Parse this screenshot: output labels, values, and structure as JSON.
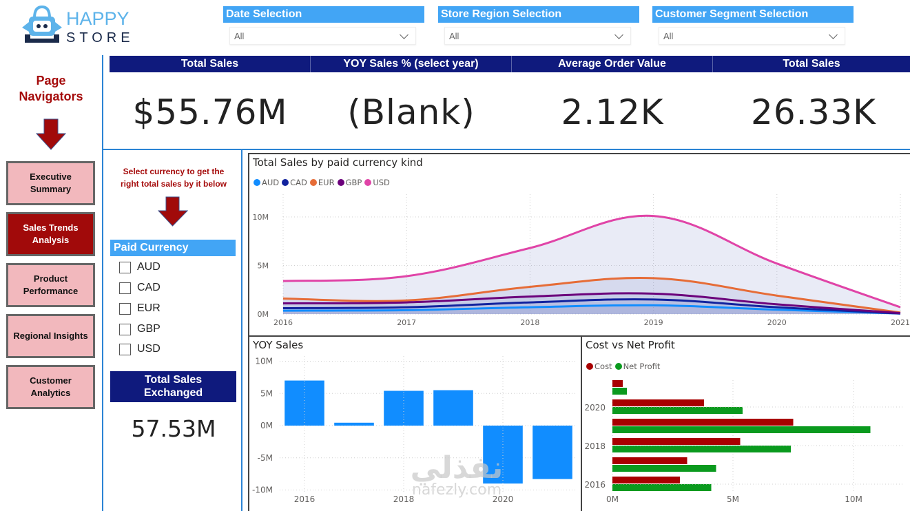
{
  "logo": {
    "word1": "HAPPY",
    "word2": "STORE",
    "icon": "shopping-bag-robot-icon"
  },
  "filters": [
    {
      "label": "Date Selection",
      "value": "All"
    },
    {
      "label": "Store Region Selection",
      "value": "All"
    },
    {
      "label": "Customer Segment Selection",
      "value": "All"
    }
  ],
  "nav": {
    "title_line1": "Page",
    "title_line2": "Navigators",
    "items": [
      {
        "line1": "Executive",
        "line2": "Summary",
        "active": false
      },
      {
        "line1": "Sales Trends",
        "line2": "Analysis",
        "active": true
      },
      {
        "line1": "Product",
        "line2": "Performance",
        "active": false
      },
      {
        "line1": "Regional Insights",
        "line2": "",
        "active": false
      },
      {
        "line1": "Customer",
        "line2": "Analytics",
        "active": false
      }
    ]
  },
  "kpis": [
    {
      "label": "Total Sales",
      "value": "$55.76M"
    },
    {
      "label": "YOY Sales % (select year)",
      "value": "(Blank)"
    },
    {
      "label": "Average Order Value",
      "value": "2.12K"
    },
    {
      "label": "Total Sales",
      "value": "26.33K"
    }
  ],
  "currency_panel": {
    "hint_line1": "Select currency to get the",
    "hint_line2": "right total sales by it below",
    "slicer_title": "Paid Currency",
    "options": [
      {
        "label": "AUD",
        "checked": false
      },
      {
        "label": "CAD",
        "checked": false
      },
      {
        "label": "EUR",
        "checked": false
      },
      {
        "label": "GBP",
        "checked": false
      },
      {
        "label": "USD",
        "checked": false
      }
    ],
    "total_label_line1": "Total Sales",
    "total_label_line2": "Exchanged",
    "total_value": "57.53M"
  },
  "colors": {
    "nav_active": "#a10a0a",
    "nav_inactive": "#f2b8bd",
    "kpi_header": "#0f1a7d",
    "slicer_header": "#42a5f5",
    "bar_blue": "#118dff",
    "cost": "#a80000",
    "net_profit": "#0a9a1e"
  },
  "watermark": {
    "arabic": "نفذلي",
    "latin": "nafezly.com"
  },
  "chart_data": [
    {
      "type": "area",
      "title": "Total Sales by paid currency kind",
      "x": [
        2016,
        2017,
        2018,
        2019,
        2020,
        2021
      ],
      "xticks": [
        "2016",
        "2017",
        "2018",
        "2019",
        "2020",
        "2021"
      ],
      "yticks": [
        "0M",
        "5M",
        "10M"
      ],
      "ylim": [
        0,
        11.5
      ],
      "yunit": "M",
      "legend_position": "top-left",
      "grid": true,
      "series": [
        {
          "name": "AUD",
          "color": "#118dff",
          "values": [
            0.35,
            0.4,
            0.7,
            0.9,
            0.45,
            0.05
          ]
        },
        {
          "name": "CAD",
          "color": "#12239e",
          "values": [
            0.6,
            0.7,
            1.2,
            1.5,
            0.7,
            0.05
          ]
        },
        {
          "name": "EUR",
          "color": "#e66c37",
          "values": [
            1.6,
            1.4,
            2.8,
            3.7,
            1.9,
            0.15
          ]
        },
        {
          "name": "GBP",
          "color": "#6b007b",
          "values": [
            1.1,
            1.2,
            1.8,
            2.1,
            1.0,
            0.1
          ]
        },
        {
          "name": "USD",
          "color": "#e044a7",
          "values": [
            3.4,
            3.9,
            6.8,
            10.1,
            5.2,
            0.7
          ]
        }
      ]
    },
    {
      "type": "bar",
      "title": "YOY Sales",
      "categories": [
        "2016",
        "2017",
        "2018",
        "2019",
        "2020",
        "2021"
      ],
      "xticks": [
        "2016",
        "2018",
        "2020"
      ],
      "values": [
        7.0,
        0.45,
        5.4,
        5.5,
        -9.0,
        -8.3
      ],
      "yticks": [
        "10M",
        "5M",
        "0M",
        "-5M",
        "-10M"
      ],
      "ylim": [
        -10,
        10
      ],
      "yunit": "M",
      "grid": true
    },
    {
      "type": "bar",
      "orientation": "horizontal",
      "title": "Cost vs Net Profit",
      "categories": [
        "2021",
        "2020",
        "2019",
        "2018",
        "2017",
        "2016"
      ],
      "yticks": [
        "2020",
        "2018",
        "2016"
      ],
      "xticks": [
        "0M",
        "5M",
        "10M"
      ],
      "xlim": [
        0,
        11.5
      ],
      "unit": "M",
      "legend_position": "top-left",
      "series": [
        {
          "name": "Cost",
          "color": "#a80000",
          "values": [
            0.43,
            3.8,
            7.5,
            5.3,
            3.1,
            2.8
          ]
        },
        {
          "name": "Net Profit",
          "color": "#0a9a1e",
          "values": [
            0.6,
            5.4,
            10.7,
            7.4,
            4.3,
            4.1
          ]
        }
      ]
    }
  ]
}
